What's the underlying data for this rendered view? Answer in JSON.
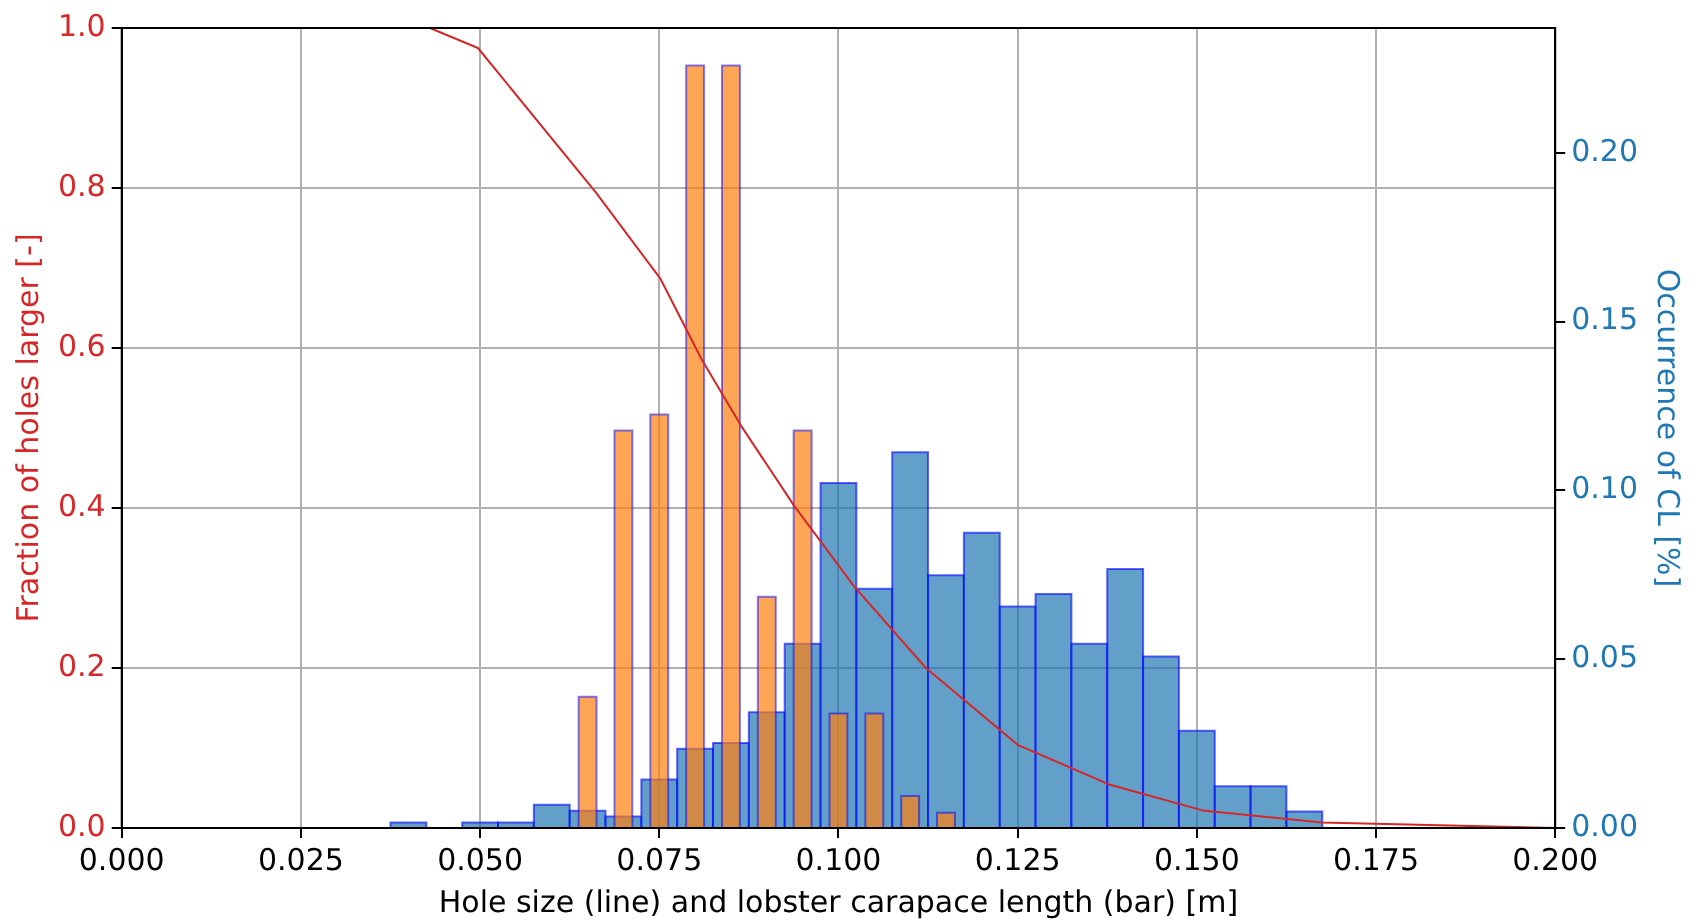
{
  "chart_data": {
    "type": "bar",
    "xlabel": "Hole size (line) and lobster carapace length (bar) [m]",
    "ylabel": "Fraction of holes larger [-]",
    "y2label": "Occurrence of CL [%]",
    "xlim": [
      0,
      0.2
    ],
    "xticks": [
      {
        "value": 0,
        "label": "0.000"
      },
      {
        "value": 0.025,
        "label": "0.025"
      },
      {
        "value": 0.05,
        "label": "0.050"
      },
      {
        "value": 0.075,
        "label": "0.075"
      },
      {
        "value": 0.1,
        "label": "0.100"
      },
      {
        "value": 0.125,
        "label": "0.125"
      },
      {
        "value": 0.15,
        "label": "0.150"
      },
      {
        "value": 0.175,
        "label": "0.175"
      },
      {
        "value": 0.2,
        "label": "0.200"
      }
    ],
    "ylim": [
      0,
      1
    ],
    "yticks": [
      {
        "value": 0,
        "label": "0.0"
      },
      {
        "value": 0.2,
        "label": "0.2"
      },
      {
        "value": 0.4,
        "label": "0.4"
      },
      {
        "value": 0.6,
        "label": "0.6"
      },
      {
        "value": 0.8,
        "label": "0.8"
      },
      {
        "value": 1,
        "label": "1.0"
      }
    ],
    "y2lim": [
      0,
      0.237
    ],
    "y2ticks": [
      {
        "value": 0,
        "label": "0.00"
      },
      {
        "value": 0.05,
        "label": "0.05"
      },
      {
        "value": 0.1,
        "label": "0.10"
      },
      {
        "value": 0.15,
        "label": "0.15"
      },
      {
        "value": 0.2,
        "label": "0.20"
      }
    ],
    "grid": true,
    "series": [
      {
        "color": "#ff7f0e",
        "x": [
          0.065,
          0.07,
          0.075,
          0.08,
          0.085,
          0.09,
          0.095,
          0.1,
          0.105,
          0.11,
          0.115
        ],
        "values": [
          0.164,
          0.497,
          0.517,
          0.953,
          0.953,
          0.289,
          0.497,
          0.143,
          0.143,
          0.04,
          0.019
        ]
      },
      {
        "type": "line",
        "color": "#d62728",
        "x": [
          0.043,
          0.0497,
          0.0662,
          0.0752,
          0.0809,
          0.0864,
          0.0938,
          0.1021,
          0.1122,
          0.125,
          0.1379,
          0.1508,
          0.1674,
          0.2
        ],
        "values": [
          1,
          0.975,
          0.794,
          0.686,
          0.586,
          0.503,
          0.403,
          0.303,
          0.2,
          0.104,
          0.054,
          0.022,
          0.007,
          0
        ]
      },
      {
        "type": "histogram",
        "axis": "y2",
        "color": "#1f77b4",
        "bins": [
          0.0375,
          0.0425,
          0.0475,
          0.0525,
          0.0575,
          0.0625,
          0.0675,
          0.0725,
          0.0775,
          0.0825,
          0.0875,
          0.0925,
          0.0975,
          0.1025,
          0.1075,
          0.1125,
          0.1175,
          0.1225,
          0.1275,
          0.1325,
          0.1375,
          0.1425,
          0.1475,
          0.1525,
          0.1575,
          0.1625,
          0.1675
        ],
        "values": [
          0.0016,
          0,
          0.0016,
          0.0016,
          0.0069,
          0.0051,
          0.0034,
          0.0144,
          0.0235,
          0.0252,
          0.0343,
          0.0546,
          0.1022,
          0.0709,
          0.1113,
          0.0749,
          0.0875,
          0.0656,
          0.0693,
          0.0546,
          0.0767,
          0.0508,
          0.0288,
          0.0124,
          0.0124,
          0.0049
        ]
      }
    ]
  }
}
